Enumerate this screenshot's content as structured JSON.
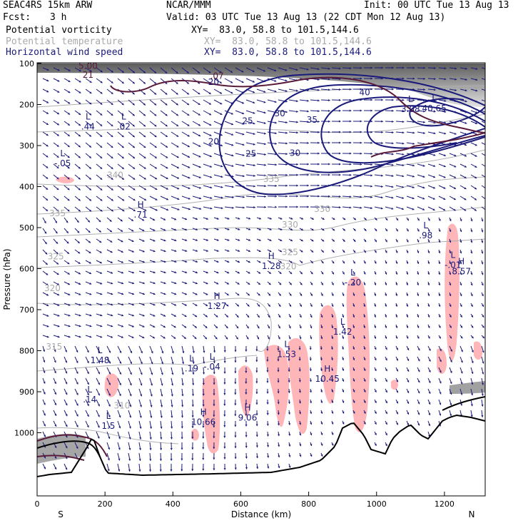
{
  "header": {
    "model": "SEAC4RS 15km ARW",
    "org": "NCAR/MMM",
    "init": "Init: 00 UTC Tue 13 Aug 13",
    "fcst_label": "Fcst:",
    "fcst_value": "3 h",
    "valid": "Valid: 03 UTC Tue 13 Aug 13 (22 CDT Mon 12 Aug 13)",
    "fields": [
      {
        "name": "Potential vorticity",
        "xy": "XY=  83.0, 58.8 to 101.5,144.6",
        "color": "#000000"
      },
      {
        "name": "Potential temperature",
        "xy": "XY=  83.0, 58.8 to 101.5,144.6",
        "color": "#aaaaaa"
      },
      {
        "name": "Horizontal wind speed",
        "xy": "XY=  83.0, 58.8 to 101.5,144.6",
        "color": "#1a1a7a"
      }
    ]
  },
  "chart_data": {
    "type": "cross-section",
    "xlabel": "Distance (km)",
    "ylabel": "Pressure (hPa)",
    "xlim": [
      0,
      1320
    ],
    "ylim": [
      1050,
      100
    ],
    "x_ticks": [
      0,
      200,
      400,
      600,
      800,
      1000,
      1200
    ],
    "y_ticks": [
      100,
      200,
      300,
      400,
      500,
      600,
      700,
      800,
      900,
      1000
    ],
    "x_end_labels": {
      "left": "S",
      "right": "N"
    },
    "colors": {
      "wind_contour": "#1a1a7a",
      "theta_contour": "#b0b0b0",
      "pv_contour": "#5a1a3a",
      "pv_shade": "#ffb6b8",
      "terrain": "#000000"
    },
    "wind_speed_contours": [
      {
        "level": 20,
        "points": [
          [
            470,
            1000
          ]
        ],
        "labels": [
          [
            520,
            145
          ],
          [
            520,
            290
          ]
        ]
      },
      {
        "level": 25,
        "labels": [
          [
            620,
            240
          ],
          [
            620,
            320
          ]
        ]
      },
      {
        "level": 30,
        "labels": [
          [
            710,
            222
          ],
          [
            760,
            315
          ]
        ]
      },
      {
        "level": 35,
        "labels": [
          [
            810,
            237
          ]
        ]
      },
      {
        "level": 40,
        "labels": [
          [
            970,
            170
          ]
        ]
      }
    ],
    "wind_speed_labels": [
      {
        "text": "20",
        "x": 520,
        "p": 145
      },
      {
        "text": "25",
        "x": 620,
        "p": 240
      },
      {
        "text": "20",
        "x": 520,
        "p": 290
      },
      {
        "text": "25",
        "x": 630,
        "p": 320
      },
      {
        "text": "30",
        "x": 715,
        "p": 222
      },
      {
        "text": "35",
        "x": 810,
        "p": 237
      },
      {
        "text": "40",
        "x": 965,
        "p": 170
      },
      {
        "text": "30",
        "x": 760,
        "p": 318
      }
    ],
    "theta_labels": [
      {
        "text": "340",
        "x": 230,
        "p": 372
      },
      {
        "text": "335",
        "x": 60,
        "p": 465
      },
      {
        "text": "335",
        "x": 690,
        "p": 382
      },
      {
        "text": "330",
        "x": 745,
        "p": 493
      },
      {
        "text": "330",
        "x": 840,
        "p": 455
      },
      {
        "text": "325",
        "x": 745,
        "p": 560
      },
      {
        "text": "325",
        "x": 55,
        "p": 570
      },
      {
        "text": "320",
        "x": 740,
        "p": 595
      },
      {
        "text": "320",
        "x": 45,
        "p": 648
      },
      {
        "text": "315",
        "x": 50,
        "p": 790
      },
      {
        "text": "310",
        "x": 250,
        "p": 934
      }
    ],
    "pv_extrema": [
      {
        "kind": "L",
        "value": ".44",
        "x": 150,
        "p": 245
      },
      {
        "kind": "L",
        "value": ".02",
        "x": 255,
        "p": 245
      },
      {
        "kind": "L",
        "value": "-.05",
        "x": 75,
        "p": 335
      },
      {
        "kind": "H",
        "value": ".71",
        "x": 305,
        "p": 460
      },
      {
        "kind": "L",
        "value": ".98",
        "x": 1145,
        "p": 510
      },
      {
        "kind": "H",
        "value": "1.28",
        "x": 690,
        "p": 585
      },
      {
        "kind": "L",
        "value": "-.20",
        "x": 930,
        "p": 625
      },
      {
        "kind": "H",
        "value": "1.27",
        "x": 530,
        "p": 683
      },
      {
        "kind": "L",
        "value": "1.42",
        "x": 900,
        "p": 745
      },
      {
        "kind": "L",
        "value": "1.48",
        "x": 185,
        "p": 815
      },
      {
        "kind": "L",
        "value": ".19",
        "x": 455,
        "p": 835
      },
      {
        "kind": "L",
        "value": "-.04",
        "x": 515,
        "p": 830
      },
      {
        "kind": "L",
        "value": "1.53",
        "x": 735,
        "p": 800
      },
      {
        "kind": "H",
        "value": "10.45",
        "x": 855,
        "p": 860
      },
      {
        "kind": "H",
        "value": "10.66",
        "x": 490,
        "p": 965
      },
      {
        "kind": "H",
        "value": "9.06",
        "x": 620,
        "p": 955
      },
      {
        "kind": "L",
        "value": ".14",
        "x": 155,
        "p": 910
      },
      {
        "kind": "L",
        "value": "1.5",
        "x": 210,
        "p": 975
      },
      {
        "kind": "H",
        "value": "8.57",
        "x": 1250,
        "p": 598
      },
      {
        "kind": "L",
        "value": "-.01",
        "x": 1225,
        "p": 583
      },
      {
        "kind": "L",
        "value": "3.08",
        "x": 1100,
        "p": 203
      },
      {
        "kind": "L",
        "value": "40.65",
        "x": 1170,
        "p": 201
      }
    ],
    "top_labels": [
      {
        "text": "5.00",
        "x": 150,
        "p": 106
      },
      {
        "text": "21",
        "x": 150,
        "p": 128
      },
      {
        "text": ".07",
        "x": 530,
        "p": 130
      }
    ]
  }
}
